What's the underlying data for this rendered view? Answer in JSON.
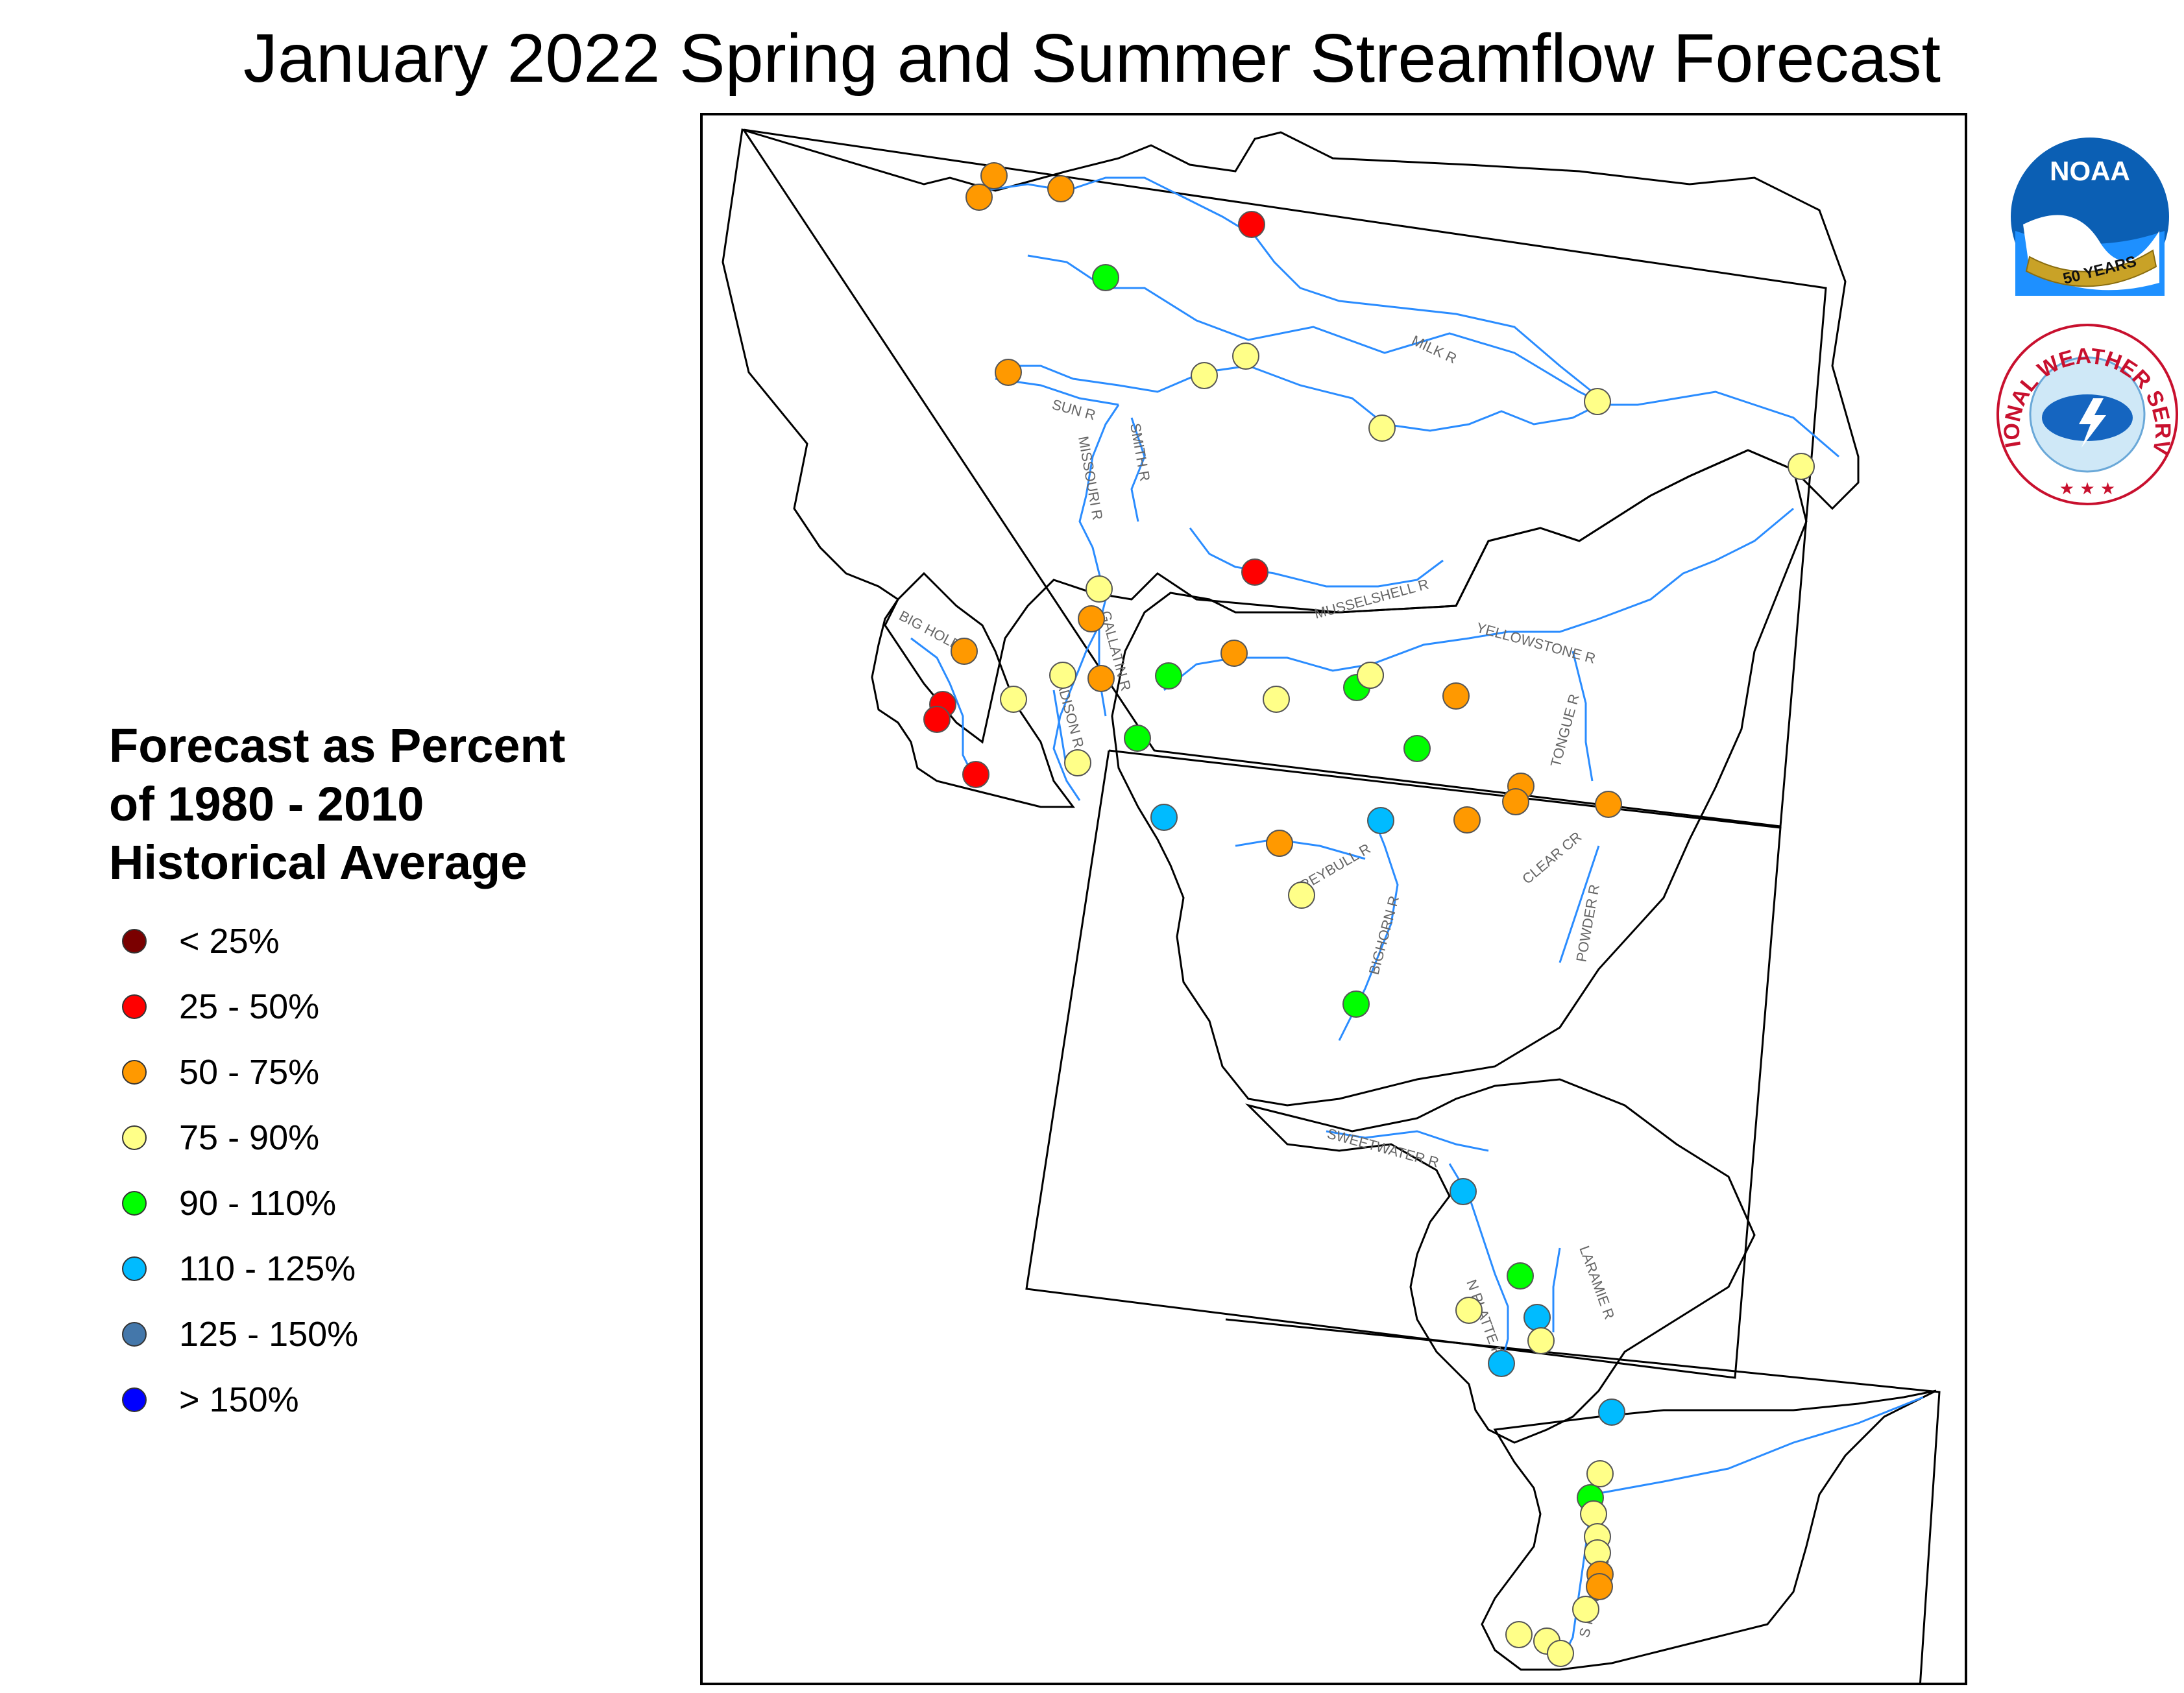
{
  "title": "January 2022 Spring and Summer Streamflow Forecast",
  "legend": {
    "title": "Forecast as Percent\nof 1980 - 2010\nHistorical Average",
    "items": [
      {
        "label": "< 25%",
        "color": "#7a0000"
      },
      {
        "label": "25 - 50%",
        "color": "#ff0000"
      },
      {
        "label": "50 - 75%",
        "color": "#ff9900"
      },
      {
        "label": "75 - 90%",
        "color": "#ffff88"
      },
      {
        "label": "90 - 110%",
        "color": "#00ff00"
      },
      {
        "label": "110 - 125%",
        "color": "#00bbff"
      },
      {
        "label": "125 - 150%",
        "color": "#4477aa"
      },
      {
        "label": "> 150%",
        "color": "#0000ff"
      }
    ]
  },
  "river_labels": [
    "MILK R",
    "SUN R",
    "MISSOURI R",
    "SMITH R",
    "MUSSELSHELL R",
    "BIG HOLE R",
    "GALLATIN R",
    "MADISON R",
    "YELLOWSTONE R",
    "TONGUE R",
    "GREYBULL R",
    "CLEAR CR",
    "POWDER R",
    "BIGHORN R",
    "SWEETWATER R",
    "LARAMIE R",
    "N PLATTE R",
    "S PLATTE R"
  ],
  "logos": {
    "noaa_text": "NOAA",
    "noaa_years": "50 YEARS",
    "nws_text": "NATIONAL WEATHER SERVICE"
  },
  "stations": [
    {
      "cat": 2
    },
    {
      "cat": 2
    },
    {
      "cat": 2
    },
    {
      "cat": 1
    },
    {
      "cat": 4
    },
    {
      "cat": 2
    },
    {
      "cat": 3
    },
    {
      "cat": 3
    },
    {
      "cat": 3
    },
    {
      "cat": 3
    },
    {
      "cat": 3
    },
    {
      "cat": 1
    },
    {
      "cat": 3
    },
    {
      "cat": 2
    },
    {
      "cat": 2
    },
    {
      "cat": 1
    },
    {
      "cat": 1
    },
    {
      "cat": 1
    },
    {
      "cat": 3
    },
    {
      "cat": 3
    },
    {
      "cat": 3
    },
    {
      "cat": 2
    },
    {
      "cat": 3
    },
    {
      "cat": 4
    },
    {
      "cat": 4
    },
    {
      "cat": 2
    },
    {
      "cat": 3
    },
    {
      "cat": 3
    },
    {
      "cat": 2
    },
    {
      "cat": 4
    },
    {
      "cat": 4
    },
    {
      "cat": 2
    },
    {
      "cat": 2
    },
    {
      "cat": 2
    },
    {
      "cat": 2
    },
    {
      "cat": 5
    },
    {
      "cat": 5
    },
    {
      "cat": 2
    },
    {
      "cat": 2
    },
    {
      "cat": 3
    },
    {
      "cat": 4
    },
    {
      "cat": 5
    },
    {
      "cat": 4
    },
    {
      "cat": 3
    },
    {
      "cat": 5
    },
    {
      "cat": 5
    },
    {
      "cat": 3
    },
    {
      "cat": 5
    },
    {
      "cat": 3
    },
    {
      "cat": 4
    },
    {
      "cat": 3
    },
    {
      "cat": 3
    },
    {
      "cat": 3
    },
    {
      "cat": 2
    },
    {
      "cat": 2
    },
    {
      "cat": 3
    },
    {
      "cat": 3
    },
    {
      "cat": 3
    },
    {
      "cat": 3
    }
  ]
}
